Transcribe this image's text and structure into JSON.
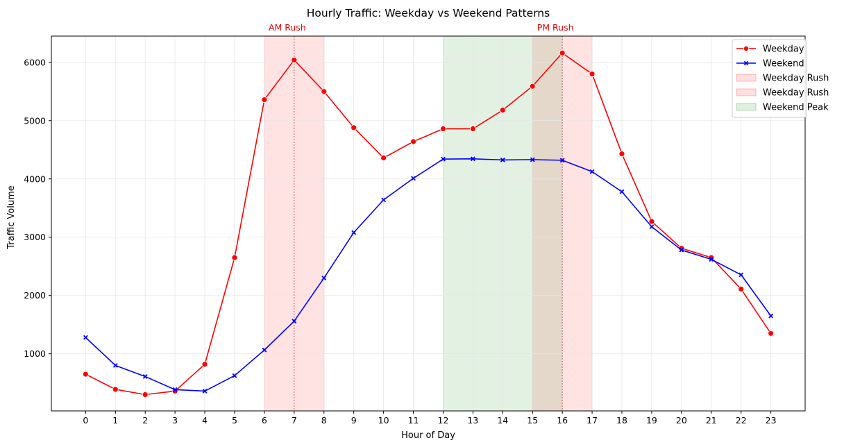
{
  "chart_data": {
    "type": "line",
    "title": "Hourly Traffic: Weekday vs Weekend Patterns",
    "xlabel": "Hour of Day",
    "ylabel": "Traffic Volume",
    "x": [
      0,
      1,
      2,
      3,
      4,
      5,
      6,
      7,
      8,
      9,
      10,
      11,
      12,
      13,
      14,
      15,
      16,
      17,
      18,
      19,
      20,
      21,
      22,
      23
    ],
    "xlim": [
      -1.15,
      24.15
    ],
    "ylim": [
      20,
      6450
    ],
    "yticks": [
      1000,
      2000,
      3000,
      4000,
      5000,
      6000
    ],
    "grid": true,
    "legend_position": "top-right",
    "series": [
      {
        "name": "Weekday",
        "color": "#ff0000",
        "marker": "circle",
        "values": [
          650,
          390,
          300,
          360,
          820,
          2650,
          5360,
          6040,
          5500,
          4880,
          4360,
          4640,
          4860,
          4860,
          5180,
          5590,
          6160,
          5800,
          4430,
          3270,
          2810,
          2650,
          2110,
          1350
        ]
      },
      {
        "name": "Weekend",
        "color": "#0000ff",
        "marker": "x",
        "values": [
          1280,
          800,
          610,
          385,
          360,
          625,
          1065,
          1560,
          2300,
          3080,
          3640,
          4010,
          4340,
          4345,
          4325,
          4330,
          4320,
          4125,
          3780,
          3180,
          2780,
          2620,
          2355,
          1650
        ]
      }
    ],
    "shaded_regions": [
      {
        "name": "Weekday Rush",
        "from": 6,
        "to": 8,
        "color": "#ff0000",
        "opacity": 0.11
      },
      {
        "name": "Weekday Rush",
        "from": 15,
        "to": 17,
        "color": "#ff0000",
        "opacity": 0.11
      },
      {
        "name": "Weekend Peak",
        "from": 12,
        "to": 16,
        "color": "#008000",
        "opacity": 0.11
      }
    ],
    "peak_lines": [
      {
        "x": 7,
        "color": "#cc6666"
      },
      {
        "x": 16,
        "color": "#cc6666"
      }
    ],
    "annotations": [
      {
        "text": "AM Rush",
        "x": 7
      },
      {
        "text": "PM Rush",
        "x": 16
      }
    ],
    "legend": [
      {
        "label": "Weekday",
        "kind": "line-circle",
        "color": "#ff0000"
      },
      {
        "label": "Weekend",
        "kind": "line-x",
        "color": "#0000ff"
      },
      {
        "label": "Weekday Rush",
        "kind": "patch",
        "color": "#ff0000"
      },
      {
        "label": "Weekday Rush",
        "kind": "patch",
        "color": "#ff0000"
      },
      {
        "label": "Weekend Peak",
        "kind": "patch",
        "color": "#008000"
      }
    ]
  }
}
